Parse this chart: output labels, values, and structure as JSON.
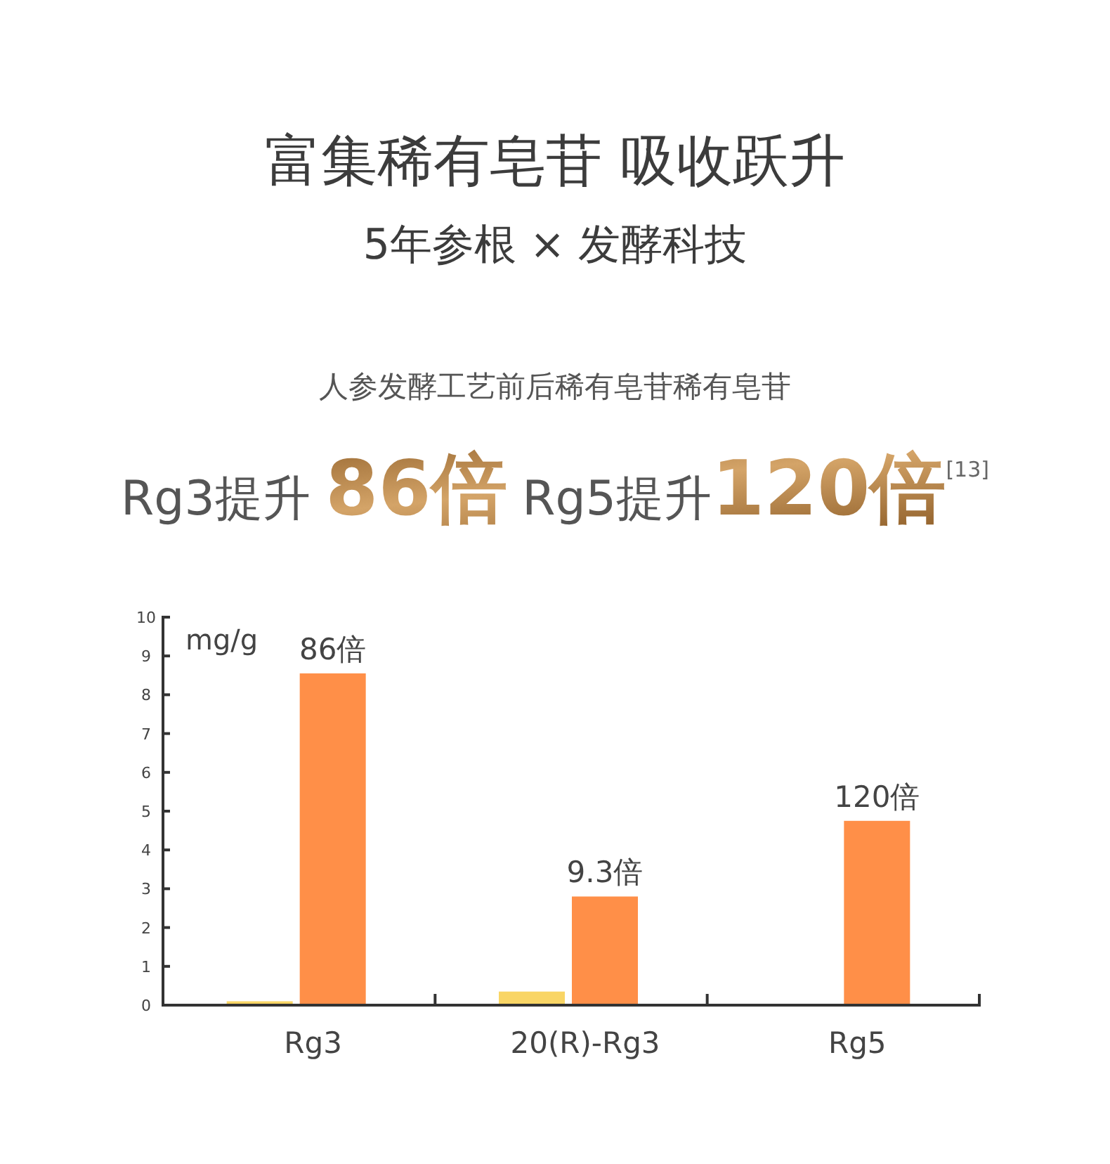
{
  "chart_data": {
    "type": "bar",
    "title": "富集稀有皂苷 吸收跃升",
    "subtitle": "5年参根 × 发酵科技",
    "annotations": [
      "人参发酵工艺前后稀有皂苷稀有皂苷",
      "Rg3提升 86倍 Rg5提升120倍$^{[13]}$",
      {
        "text": "86倍",
        "x": "Rg3",
        "y": 8.55
      },
      {
        "text": "9.3倍",
        "x": "20(R)-Rg3",
        "y": 2.8
      },
      {
        "text": "120倍",
        "x": "Rg5",
        "y": 4.75
      }
    ],
    "ylabel": "mg/g",
    "categories": [
      "Rg3",
      "20(R)-Rg3",
      "Rg5"
    ],
    "series": [
      {
        "color": "#f9d565",
        "values": [
          0.1,
          0.35,
          null
        ]
      },
      {
        "color": "#ff8f48",
        "values": [
          8.55,
          2.8,
          4.75
        ]
      }
    ],
    "ylim": [
      0,
      10
    ],
    "yticks": [
      0,
      1,
      2,
      3,
      4,
      5,
      6,
      7,
      8,
      9,
      10
    ],
    "grid": false
  }
}
